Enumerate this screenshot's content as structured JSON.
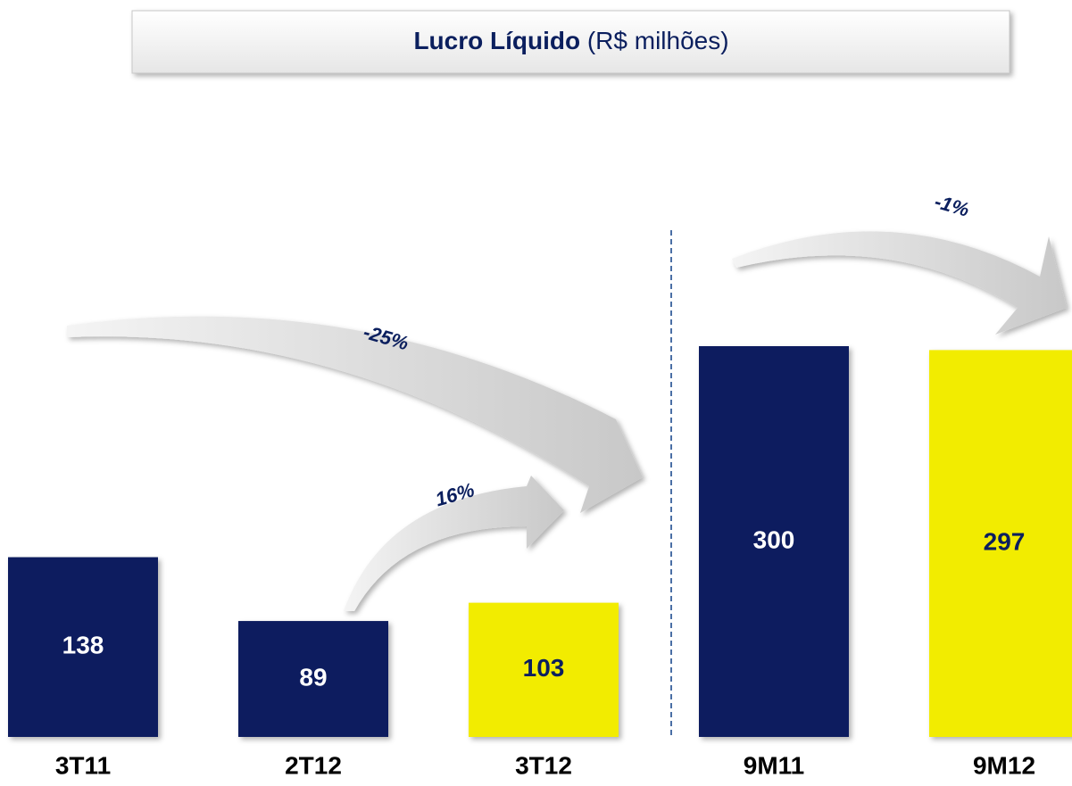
{
  "chart_data": {
    "type": "bar",
    "title": "Lucro Líquido",
    "subtitle": "(R$ milhões)",
    "categories": [
      "3T11",
      "2T12",
      "3T12",
      "9M11",
      "9M12"
    ],
    "values": [
      138,
      89,
      103,
      300,
      297
    ],
    "colors": [
      "#0b1f5e",
      "#0b1f5e",
      "#f2ec00",
      "#0b1f5e",
      "#f2ec00"
    ],
    "annotations": [
      "-25%",
      "16%",
      "-1%"
    ]
  }
}
